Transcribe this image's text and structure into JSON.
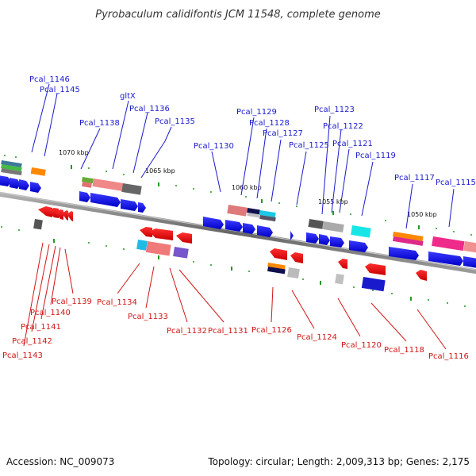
{
  "title": "Pyrobaculum calidifontis JCM 11548, complete genome",
  "footer": {
    "accession": "Accession: NC_009073",
    "summary": "Topology: circular; Length: 2,009,313 bp; Genes: 2,175"
  },
  "ruler": [
    "1070 kbp",
    "1065 kbp",
    "1060 kbp",
    "1055 kbp",
    "1050 kbp"
  ],
  "forward_labels": [
    "Pcal_1146",
    "Pcal_1145",
    "gltX",
    "Pcal_1136",
    "Pcal_1138",
    "Pcal_1135",
    "Pcal_1129",
    "Pcal_1128",
    "Pcal_1127",
    "Pcal_1130",
    "Pcal_1123",
    "Pcal_1122",
    "Pcal_1125",
    "Pcal_1121",
    "Pcal_1119",
    "Pcal_1117",
    "Pcal_1115"
  ],
  "reverse_labels": [
    "Pcal_1139",
    "Pcal_1140",
    "Pcal_1141",
    "Pcal_1142",
    "Pcal_1143",
    "Pcal_1134",
    "Pcal_1133",
    "Pcal_1132",
    "Pcal_1131",
    "Pcal_1126",
    "Pcal_1124",
    "Pcal_1120",
    "Pcal_1118",
    "Pcal_1116"
  ],
  "colors": {
    "forward": "#1a1acd",
    "reverse": "#d11515",
    "backbone": "#888888"
  }
}
